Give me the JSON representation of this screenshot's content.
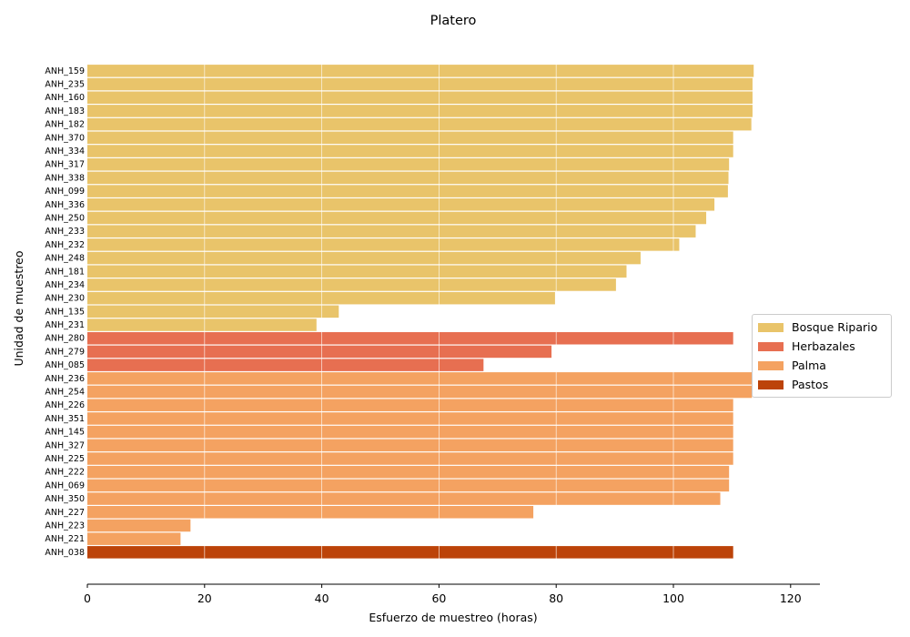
{
  "chart_data": {
    "type": "bar",
    "orientation": "horizontal",
    "title": "Platero",
    "xlabel": "Esfuerzo de muestreo (horas)",
    "ylabel": "Unidad de muestreo",
    "xlim": [
      0,
      125
    ],
    "xticks": [
      0,
      20,
      40,
      60,
      80,
      100,
      120
    ],
    "grid": "vertical",
    "legend_position": "right",
    "series": [
      {
        "name": "Bosque Ripario",
        "color": "#e9c46a"
      },
      {
        "name": "Herbazales",
        "color": "#e76f51"
      },
      {
        "name": "Palma",
        "color": "#f4a261"
      },
      {
        "name": "Pastos",
        "color": "#bc4309"
      }
    ],
    "bars": [
      {
        "category": "ANH_159",
        "value": 113.7,
        "series": "Bosque Ripario"
      },
      {
        "category": "ANH_235",
        "value": 113.5,
        "series": "Bosque Ripario"
      },
      {
        "category": "ANH_160",
        "value": 113.5,
        "series": "Bosque Ripario"
      },
      {
        "category": "ANH_183",
        "value": 113.5,
        "series": "Bosque Ripario"
      },
      {
        "category": "ANH_182",
        "value": 113.3,
        "series": "Bosque Ripario"
      },
      {
        "category": "ANH_370",
        "value": 110.2,
        "series": "Bosque Ripario"
      },
      {
        "category": "ANH_334",
        "value": 110.2,
        "series": "Bosque Ripario"
      },
      {
        "category": "ANH_317",
        "value": 109.5,
        "series": "Bosque Ripario"
      },
      {
        "category": "ANH_338",
        "value": 109.4,
        "series": "Bosque Ripario"
      },
      {
        "category": "ANH_099",
        "value": 109.3,
        "series": "Bosque Ripario"
      },
      {
        "category": "ANH_336",
        "value": 107.0,
        "series": "Bosque Ripario"
      },
      {
        "category": "ANH_250",
        "value": 105.6,
        "series": "Bosque Ripario"
      },
      {
        "category": "ANH_233",
        "value": 103.8,
        "series": "Bosque Ripario"
      },
      {
        "category": "ANH_232",
        "value": 101.0,
        "series": "Bosque Ripario"
      },
      {
        "category": "ANH_248",
        "value": 94.4,
        "series": "Bosque Ripario"
      },
      {
        "category": "ANH_181",
        "value": 92.0,
        "series": "Bosque Ripario"
      },
      {
        "category": "ANH_234",
        "value": 90.2,
        "series": "Bosque Ripario"
      },
      {
        "category": "ANH_230",
        "value": 79.8,
        "series": "Bosque Ripario"
      },
      {
        "category": "ANH_135",
        "value": 42.9,
        "series": "Bosque Ripario"
      },
      {
        "category": "ANH_231",
        "value": 39.1,
        "series": "Bosque Ripario"
      },
      {
        "category": "ANH_280",
        "value": 110.2,
        "series": "Herbazales"
      },
      {
        "category": "ANH_279",
        "value": 79.2,
        "series": "Herbazales"
      },
      {
        "category": "ANH_085",
        "value": 67.6,
        "series": "Herbazales"
      },
      {
        "category": "ANH_236",
        "value": 113.4,
        "series": "Palma"
      },
      {
        "category": "ANH_254",
        "value": 113.4,
        "series": "Palma"
      },
      {
        "category": "ANH_226",
        "value": 110.2,
        "series": "Palma"
      },
      {
        "category": "ANH_351",
        "value": 110.2,
        "series": "Palma"
      },
      {
        "category": "ANH_145",
        "value": 110.2,
        "series": "Palma"
      },
      {
        "category": "ANH_327",
        "value": 110.2,
        "series": "Palma"
      },
      {
        "category": "ANH_225",
        "value": 110.2,
        "series": "Palma"
      },
      {
        "category": "ANH_222",
        "value": 109.5,
        "series": "Palma"
      },
      {
        "category": "ANH_069",
        "value": 109.5,
        "series": "Palma"
      },
      {
        "category": "ANH_350",
        "value": 108.0,
        "series": "Palma"
      },
      {
        "category": "ANH_227",
        "value": 76.1,
        "series": "Palma"
      },
      {
        "category": "ANH_223",
        "value": 17.6,
        "series": "Palma"
      },
      {
        "category": "ANH_221",
        "value": 15.9,
        "series": "Palma"
      },
      {
        "category": "ANH_038",
        "value": 110.2,
        "series": "Pastos"
      }
    ]
  }
}
